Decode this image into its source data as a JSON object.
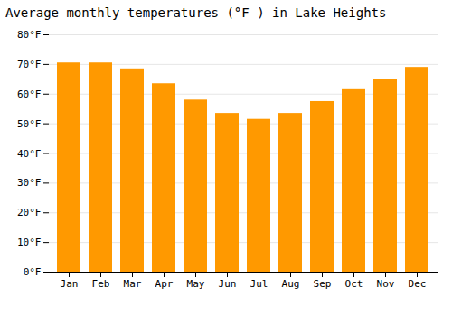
{
  "chart_data": {
    "type": "bar",
    "title": "Average monthly temperatures (°F ) in Lake Heights",
    "categories": [
      "Jan",
      "Feb",
      "Mar",
      "Apr",
      "May",
      "Jun",
      "Jul",
      "Aug",
      "Sep",
      "Oct",
      "Nov",
      "Dec"
    ],
    "values": [
      70.5,
      70.5,
      68.5,
      63.5,
      58.0,
      53.5,
      51.5,
      53.5,
      57.5,
      61.5,
      65.0,
      69.0
    ],
    "color": "#FF9900",
    "ylim": [
      0,
      80
    ],
    "yticks": [
      {
        "value": 0,
        "label": "0°F"
      },
      {
        "value": 10,
        "label": "10°F"
      },
      {
        "value": 20,
        "label": "20°F"
      },
      {
        "value": 30,
        "label": "30°F"
      },
      {
        "value": 40,
        "label": "40°F"
      },
      {
        "value": 50,
        "label": "50°F"
      },
      {
        "value": 60,
        "label": "60°F"
      },
      {
        "value": 70,
        "label": "70°F"
      },
      {
        "value": 80,
        "label": "80°F"
      }
    ],
    "grid": true
  }
}
